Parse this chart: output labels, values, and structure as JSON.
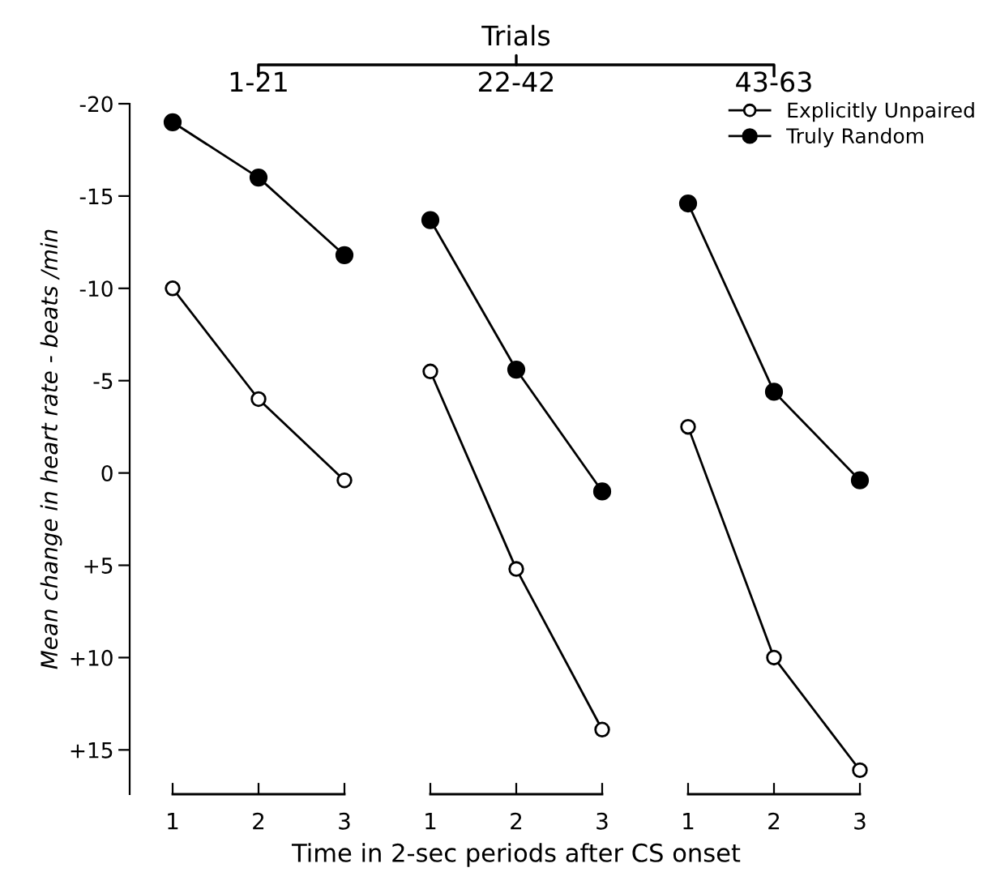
{
  "chart_data": {
    "type": "line",
    "xlabel": "Time in 2-sec periods after CS onset",
    "ylabel": "Mean change in heart rate - beats /min",
    "annotations": [
      "Trials",
      "1-21",
      "22-42",
      "43-63"
    ],
    "categories": [
      "1",
      "2",
      "3",
      "1",
      "2",
      "3",
      "1",
      "2",
      "3"
    ],
    "ylim": [
      17.4,
      -20
    ],
    "yticks": [
      {
        "value": -20,
        "label": "-20"
      },
      {
        "value": -15,
        "label": "-15"
      },
      {
        "value": -10,
        "label": "-10"
      },
      {
        "value": -5,
        "label": "-5"
      },
      {
        "value": 0,
        "label": "0"
      },
      {
        "value": 5,
        "label": "+5"
      },
      {
        "value": 10,
        "label": "+10"
      },
      {
        "value": 15,
        "label": "+15"
      }
    ],
    "marker": "circle",
    "grid": false,
    "legend": "top right",
    "series": [
      {
        "color": "#000000",
        "values": [
          -10,
          -4,
          0.4,
          null,
          null,
          null,
          null,
          null,
          null
        ]
      },
      {
        "color": "#000000",
        "values": [
          -19,
          -16,
          -11.8,
          null,
          null,
          null,
          null,
          null,
          null
        ]
      },
      {
        "color": "#000000",
        "values": [
          null,
          null,
          null,
          -5.5,
          5.2,
          13.9,
          null,
          null,
          null
        ]
      },
      {
        "color": "#000000",
        "values": [
          null,
          null,
          null,
          -13.7,
          -5.6,
          1.0,
          null,
          null,
          null
        ]
      },
      {
        "name": "Explicitly Unpaired",
        "color": "#000000",
        "values": [
          null,
          null,
          null,
          null,
          null,
          null,
          -2.5,
          10,
          16.1
        ]
      },
      {
        "name": "Truly Random",
        "color": "#000000",
        "values": [
          null,
          null,
          null,
          null,
          null,
          null,
          -14.6,
          -4.4,
          0.4
        ]
      }
    ]
  }
}
